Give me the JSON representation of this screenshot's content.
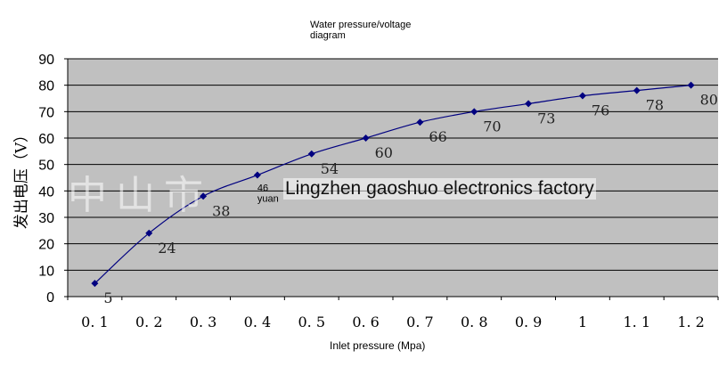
{
  "chart_data": {
    "type": "line",
    "title": "Water pressure/voltage diagram",
    "title_lines": [
      "Water pressure/voltage",
      "diagram"
    ],
    "xlabel": "Inlet pressure (Mpa)",
    "ylabel": "发出电压（V）",
    "x": [
      0.1,
      0.2,
      0.3,
      0.4,
      0.5,
      0.6,
      0.7,
      0.8,
      0.9,
      1.0,
      1.1,
      1.2
    ],
    "x_tick_labels": [
      "0. 1",
      "0. 2",
      "0. 3",
      "0. 4",
      "0. 5",
      "0. 6",
      "0. 7",
      "0. 8",
      "0. 9",
      "1",
      "1. 1",
      "1. 2"
    ],
    "series": [
      {
        "values": [
          5,
          24,
          38,
          46,
          54,
          60,
          66,
          70,
          73,
          76,
          78,
          80
        ],
        "data_labels": [
          "5",
          "24",
          "38",
          "46\nyuan",
          "54",
          "60",
          "66",
          "70",
          "73",
          "76",
          "78",
          "80"
        ]
      }
    ],
    "ylim": [
      0,
      90
    ],
    "y_ticks": [
      0,
      10,
      20,
      30,
      40,
      50,
      60,
      70,
      80,
      90
    ],
    "grid": "horizontal",
    "plot_background": "#c0c0c0",
    "line_color": "#000080",
    "marker": "diamond"
  },
  "watermark": {
    "cjk": "中山市",
    "text": "Lingzhen gaoshuo electronics factory"
  }
}
